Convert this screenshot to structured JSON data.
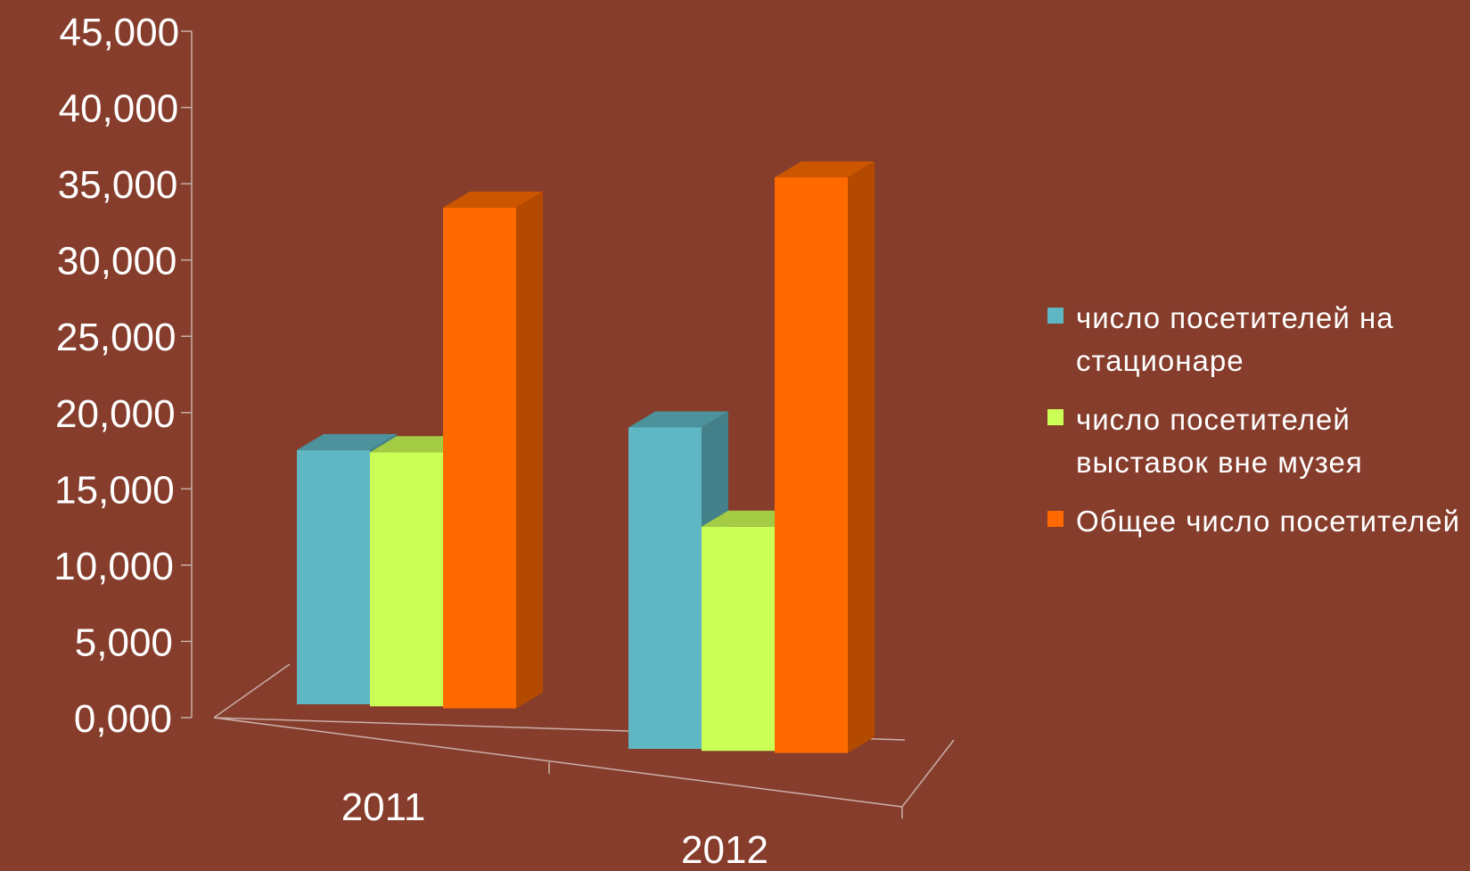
{
  "chart_data": {
    "type": "bar",
    "categories": [
      "2011",
      "2012"
    ],
    "series": [
      {
        "name": "число посетителей на стационаре",
        "values": [
          17000,
          21500
        ],
        "color": "#5fb7c3"
      },
      {
        "name": "число посетителей выставок вне музея",
        "values": [
          17000,
          15000
        ],
        "color": "#ccff55"
      },
      {
        "name": "Общее число посетителей",
        "values": [
          33500,
          38500
        ],
        "color": "#ff6a00"
      }
    ],
    "ylim": [
      0,
      45000
    ],
    "yticks": [
      0,
      5000,
      10000,
      15000,
      20000,
      25000,
      30000,
      35000,
      40000,
      45000
    ],
    "ytick_labels": [
      "0,000",
      "5,000",
      "10,000",
      "15,000",
      "20,000",
      "25,000",
      "30,000",
      "35,000",
      "40,000",
      "45,000"
    ],
    "grid": false,
    "legend_position": "right",
    "style": "3d-clustered-column"
  }
}
